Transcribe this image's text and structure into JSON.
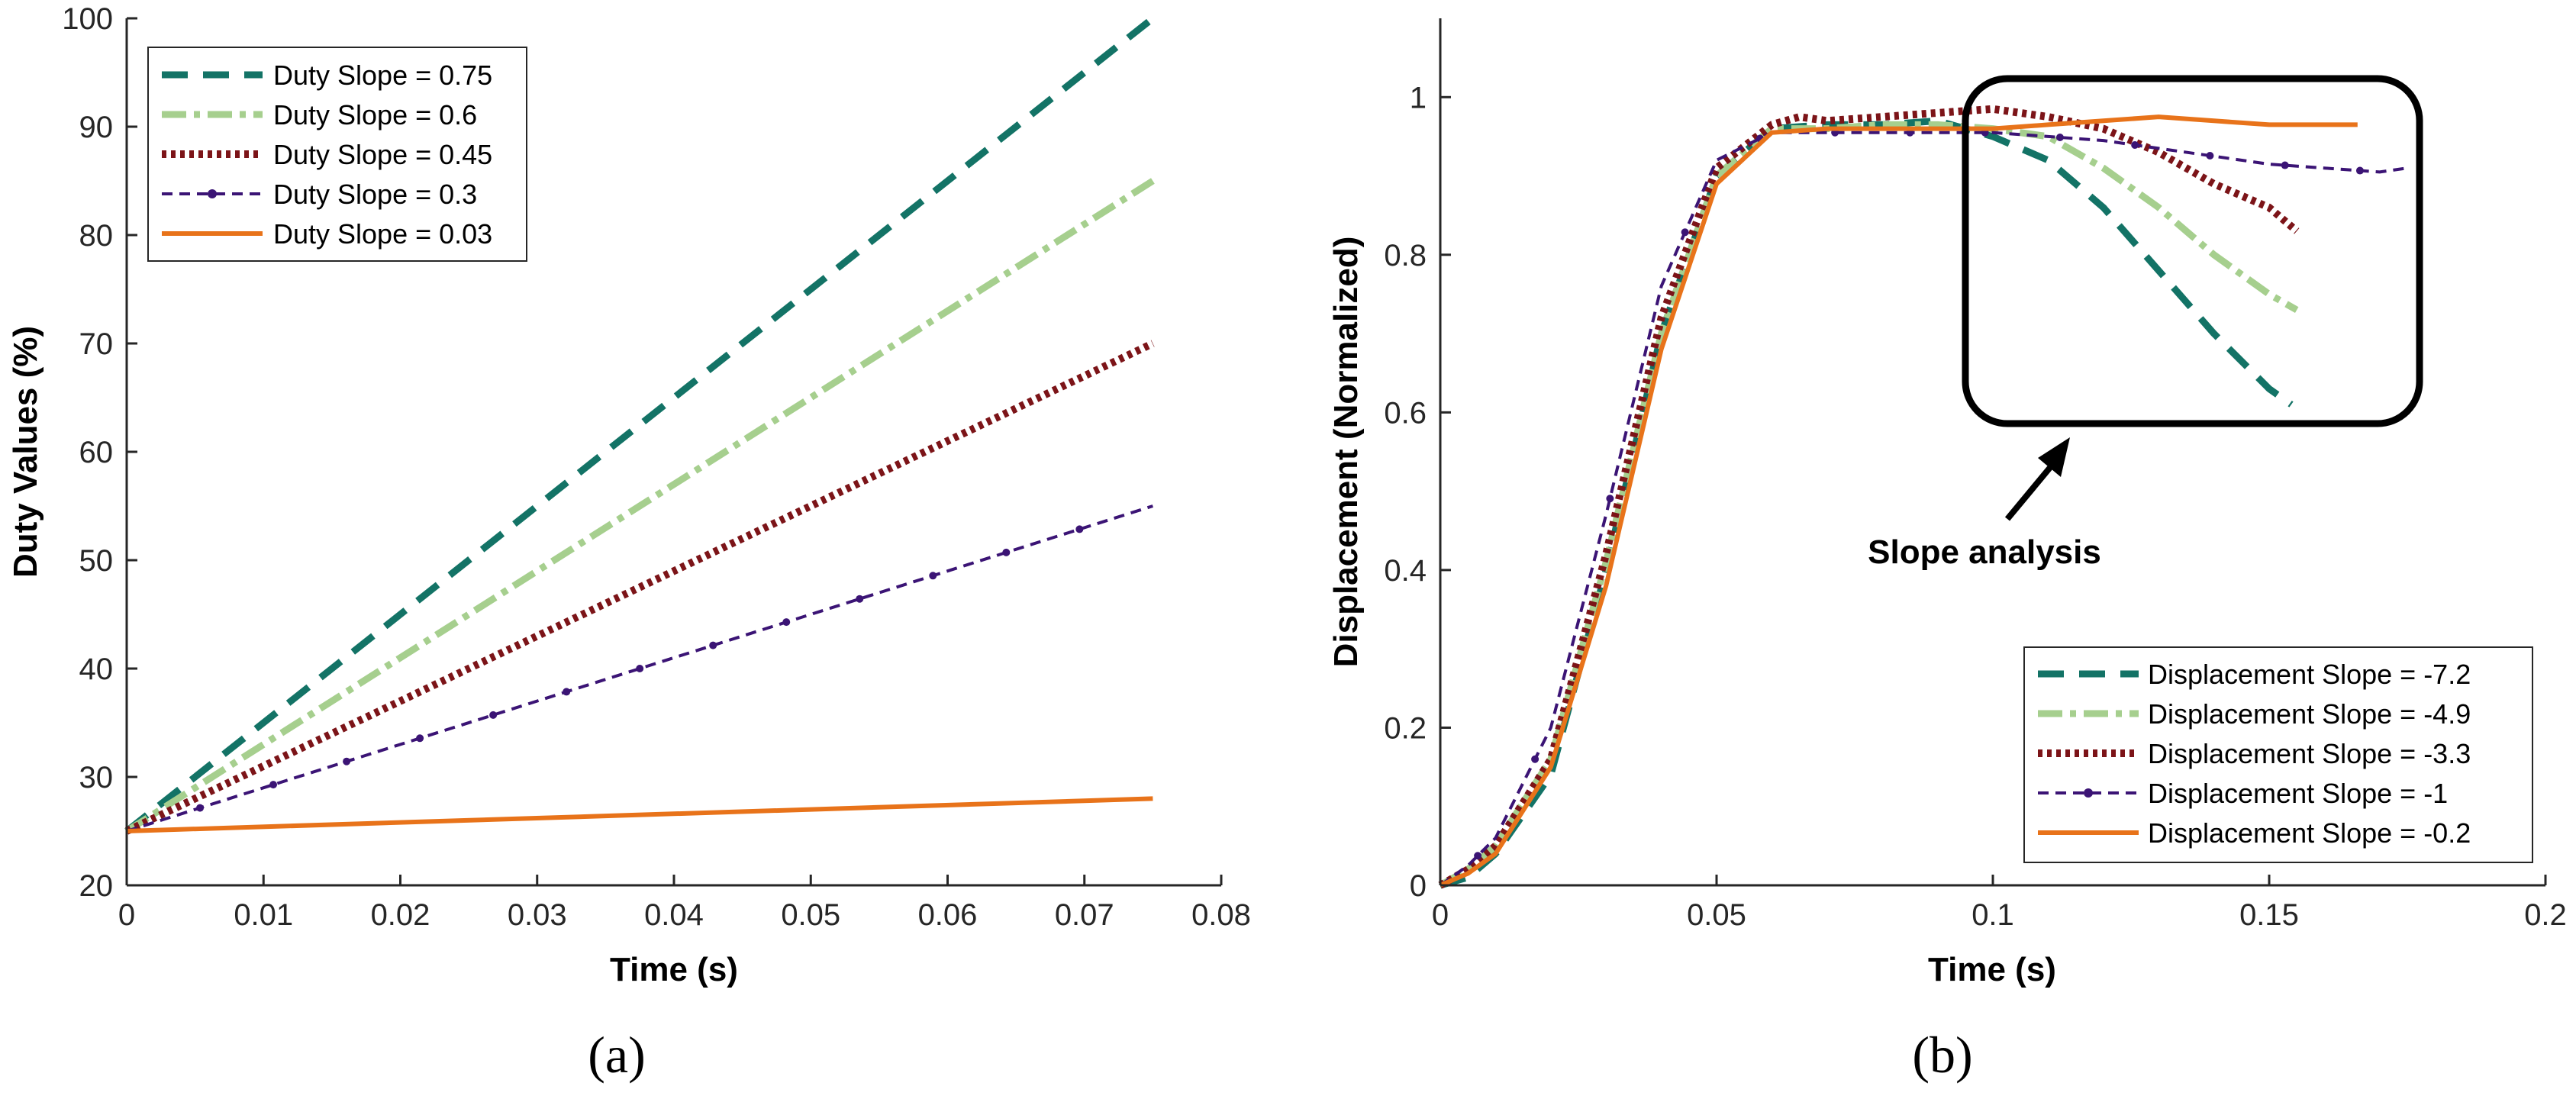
{
  "chart_data": [
    {
      "type": "line",
      "panel_label": "(a)",
      "xlabel": "Time (s)",
      "ylabel": "Duty Values (%)",
      "xlim": [
        0,
        0.08
      ],
      "ylim": [
        20,
        100
      ],
      "xticks": [
        "0",
        "0.01",
        "0.02",
        "0.03",
        "0.04",
        "0.05",
        "0.06",
        "0.07",
        "0.08"
      ],
      "yticks": [
        "20",
        "30",
        "40",
        "50",
        "60",
        "70",
        "80",
        "90",
        "100"
      ],
      "legend_position": "top-left",
      "series": [
        {
          "name": "Duty Slope = 0.75",
          "color": "#137366",
          "style": "dashed",
          "x": [
            0,
            0.075
          ],
          "y": [
            25,
            100
          ]
        },
        {
          "name": "Duty Slope = 0.6",
          "color": "#A6CF8E",
          "style": "dashdot",
          "x": [
            0,
            0.075
          ],
          "y": [
            25,
            85
          ]
        },
        {
          "name": "Duty Slope = 0.45",
          "color": "#7C1418",
          "style": "dotted",
          "x": [
            0,
            0.075
          ],
          "y": [
            25,
            70
          ]
        },
        {
          "name": "Duty Slope = 0.3",
          "color": "#3B1475",
          "style": "dashed-dot-markers",
          "x": [
            0,
            0.075
          ],
          "y": [
            25,
            55
          ]
        },
        {
          "name": "Duty Slope = 0.03",
          "color": "#E8731A",
          "style": "solid",
          "x": [
            0,
            0.075
          ],
          "y": [
            25,
            28
          ]
        }
      ]
    },
    {
      "type": "line",
      "panel_label": "(b)",
      "xlabel": "Time (s)",
      "ylabel": "Displacement (Normalized)",
      "xlim": [
        0,
        0.2
      ],
      "ylim": [
        0,
        1.1
      ],
      "xticks": [
        "0",
        "0.05",
        "0.1",
        "0.15",
        "0.2"
      ],
      "yticks": [
        "0",
        "0.2",
        "0.4",
        "0.6",
        "0.8",
        "1"
      ],
      "legend_position": "bottom-right",
      "annotation": "Slope analysis",
      "series": [
        {
          "name": "Displacement Slope = -7.2",
          "color": "#137366",
          "style": "dashed",
          "x": [
            0,
            0.005,
            0.01,
            0.02,
            0.03,
            0.04,
            0.05,
            0.06,
            0.07,
            0.08,
            0.09,
            0.1,
            0.11,
            0.12,
            0.13,
            0.14,
            0.15,
            0.154
          ],
          "y": [
            0,
            0.01,
            0.04,
            0.14,
            0.4,
            0.7,
            0.9,
            0.96,
            0.965,
            0.965,
            0.97,
            0.95,
            0.92,
            0.86,
            0.78,
            0.7,
            0.63,
            0.61
          ]
        },
        {
          "name": "Displacement Slope = -4.9",
          "color": "#A6CF8E",
          "style": "dashdot",
          "x": [
            0,
            0.005,
            0.01,
            0.02,
            0.03,
            0.04,
            0.05,
            0.06,
            0.07,
            0.08,
            0.09,
            0.1,
            0.11,
            0.12,
            0.13,
            0.14,
            0.15,
            0.155
          ],
          "y": [
            0,
            0.02,
            0.05,
            0.16,
            0.41,
            0.7,
            0.9,
            0.96,
            0.96,
            0.965,
            0.965,
            0.96,
            0.95,
            0.91,
            0.86,
            0.8,
            0.75,
            0.73
          ]
        },
        {
          "name": "Displacement Slope = -3.3",
          "color": "#7C1418",
          "style": "dotted",
          "x": [
            0,
            0.005,
            0.01,
            0.02,
            0.03,
            0.04,
            0.05,
            0.06,
            0.065,
            0.07,
            0.08,
            0.09,
            0.1,
            0.11,
            0.12,
            0.13,
            0.14,
            0.15,
            0.155
          ],
          "y": [
            0,
            0.02,
            0.05,
            0.16,
            0.42,
            0.72,
            0.91,
            0.965,
            0.975,
            0.97,
            0.975,
            0.98,
            0.985,
            0.975,
            0.96,
            0.93,
            0.89,
            0.86,
            0.83
          ]
        },
        {
          "name": "Displacement Slope = -1",
          "color": "#3B1475",
          "style": "dashed-dot-markers",
          "x": [
            0,
            0.005,
            0.01,
            0.02,
            0.03,
            0.04,
            0.05,
            0.06,
            0.07,
            0.08,
            0.09,
            0.1,
            0.11,
            0.12,
            0.13,
            0.14,
            0.15,
            0.16,
            0.17,
            0.175
          ],
          "y": [
            0,
            0.025,
            0.06,
            0.2,
            0.47,
            0.76,
            0.92,
            0.955,
            0.955,
            0.955,
            0.955,
            0.955,
            0.95,
            0.945,
            0.935,
            0.925,
            0.915,
            0.91,
            0.905,
            0.91
          ]
        },
        {
          "name": "Displacement Slope = -0.2",
          "color": "#E8731A",
          "style": "solid",
          "x": [
            0,
            0.005,
            0.01,
            0.02,
            0.03,
            0.04,
            0.05,
            0.06,
            0.07,
            0.08,
            0.09,
            0.1,
            0.11,
            0.12,
            0.13,
            0.14,
            0.15,
            0.16,
            0.166
          ],
          "y": [
            0,
            0.015,
            0.04,
            0.15,
            0.38,
            0.68,
            0.89,
            0.955,
            0.96,
            0.96,
            0.96,
            0.96,
            0.965,
            0.97,
            0.975,
            0.97,
            0.965,
            0.965,
            0.965
          ]
        }
      ]
    }
  ]
}
